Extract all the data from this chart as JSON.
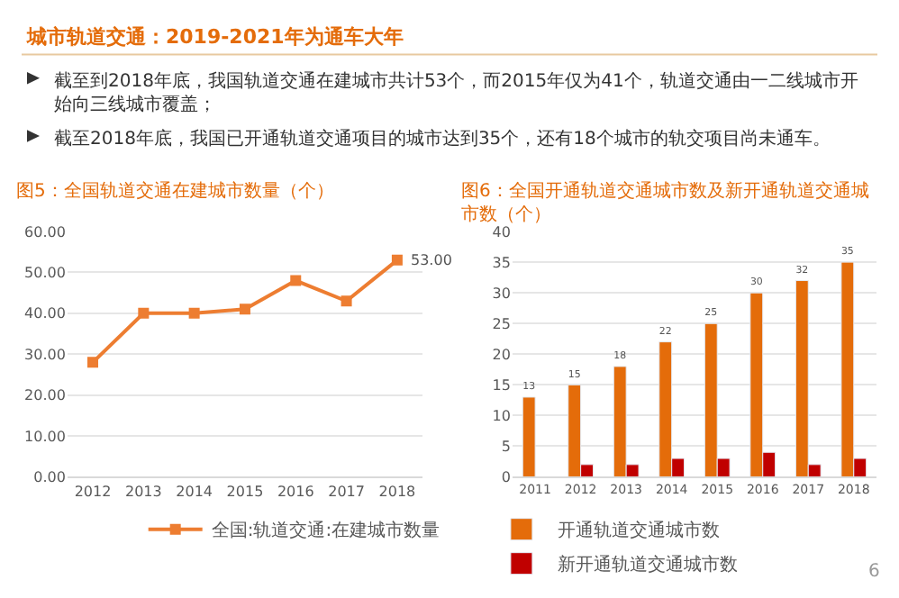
{
  "chart_data": [
    {
      "type": "other",
      "title": "城市轨道交通：2019-2021年为通车大年",
      "annotations": [
        "截至到2018年底，我国轨道交通在建城市共计53个，而2015年仅为41个，轨道交通由一二线城市开始向三线城市覆盖；",
        "截至2018年底，我国已开通轨道交通项目的城市达到35个，还有18个城市的轨交项目尚未通车。",
        "6"
      ]
    },
    {
      "type": "line",
      "title": "图5：全国轨道交通在建城市数量（个）",
      "categories": [
        "2012",
        "2013",
        "2014",
        "2015",
        "2016",
        "2017",
        "2018"
      ],
      "series": [
        {
          "name": "全国:轨道交通:在建城市数量",
          "color": "#ed7d31",
          "values": [
            28,
            40,
            40,
            41,
            48,
            43,
            53
          ],
          "value_labels": [
            null,
            null,
            null,
            null,
            null,
            null,
            "53.00"
          ]
        }
      ],
      "ylim": [
        0,
        60
      ],
      "yticks": [
        {
          "value": 0,
          "label": "0.00"
        },
        {
          "value": 10,
          "label": "10.00"
        },
        {
          "value": 20,
          "label": "20.00"
        },
        {
          "value": 30,
          "label": "30.00"
        },
        {
          "value": 40,
          "label": "40.00"
        },
        {
          "value": 50,
          "label": "50.00"
        },
        {
          "value": 60,
          "label": "60.00"
        }
      ],
      "grid": "y",
      "legend": "bottom",
      "marker": "square",
      "line_style": "solid"
    },
    {
      "type": "bar",
      "title": "图6：全国开通轨道交通城市数及新开通轨道交通城市数（个）",
      "categories": [
        "2011",
        "2012",
        "2013",
        "2014",
        "2015",
        "2016",
        "2017",
        "2018"
      ],
      "series": [
        {
          "name": "开通轨道交通城市数",
          "color": "#e46c0a",
          "values": [
            13,
            15,
            18,
            22,
            25,
            30,
            32,
            35
          ],
          "value_labels": [
            "13",
            "15",
            "18",
            "22",
            "25",
            "30",
            "32",
            "35"
          ]
        },
        {
          "name": "新开通轨道交通城市数",
          "color": "#c00000",
          "values": [
            null,
            2,
            2,
            3,
            3,
            4,
            2,
            3
          ]
        }
      ],
      "ylim": [
        0,
        40
      ],
      "yticks": [
        0,
        5,
        10,
        15,
        20,
        25,
        30,
        35,
        40
      ],
      "grid": "y",
      "legend": "bottom"
    }
  ]
}
